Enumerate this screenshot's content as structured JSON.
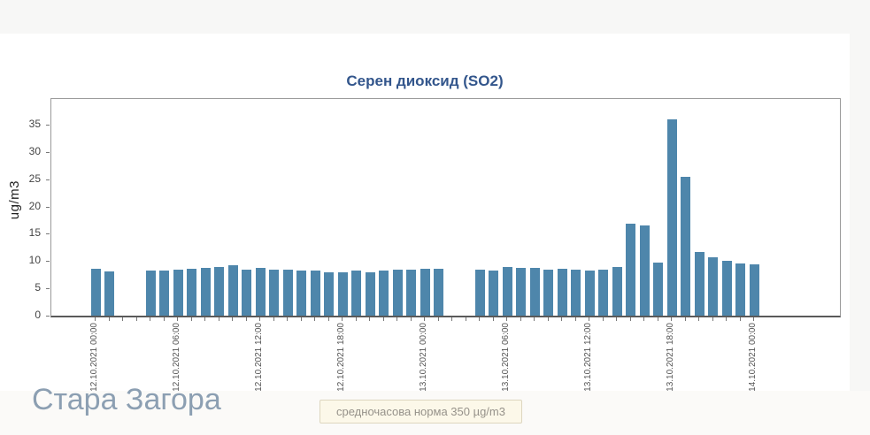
{
  "chart_data": {
    "type": "bar",
    "title": "Серен диоксид (SO2)",
    "ylabel": "ug/m3",
    "ylim": [
      0,
      39.7
    ],
    "yticks": [
      0,
      5,
      10,
      15,
      20,
      25,
      30,
      35
    ],
    "grid": false,
    "legend": "none",
    "bar_color": "#4e86ab",
    "title_color": "#33568c",
    "x_tick_label_every_hours": 6,
    "x_tick_labels": [
      "12.10.2021 00:00",
      "12.10.2021 06:00",
      "12.10.2021 12:00",
      "12.10.2021 18:00",
      "13.10.2021 00:00",
      "13.10.2021 06:00",
      "13.10.2021 12:00",
      "13.10.2021 18:00",
      "14.10.2021 00:00"
    ],
    "categories": [
      "12.10.2021 00:00",
      "12.10.2021 01:00",
      "12.10.2021 02:00",
      "12.10.2021 03:00",
      "12.10.2021 04:00",
      "12.10.2021 05:00",
      "12.10.2021 06:00",
      "12.10.2021 07:00",
      "12.10.2021 08:00",
      "12.10.2021 09:00",
      "12.10.2021 10:00",
      "12.10.2021 11:00",
      "12.10.2021 12:00",
      "12.10.2021 13:00",
      "12.10.2021 14:00",
      "12.10.2021 15:00",
      "12.10.2021 16:00",
      "12.10.2021 17:00",
      "12.10.2021 18:00",
      "12.10.2021 19:00",
      "12.10.2021 20:00",
      "12.10.2021 21:00",
      "12.10.2021 22:00",
      "12.10.2021 23:00",
      "13.10.2021 00:00",
      "13.10.2021 01:00",
      "13.10.2021 02:00",
      "13.10.2021 03:00",
      "13.10.2021 04:00",
      "13.10.2021 05:00",
      "13.10.2021 06:00",
      "13.10.2021 07:00",
      "13.10.2021 08:00",
      "13.10.2021 09:00",
      "13.10.2021 10:00",
      "13.10.2021 11:00",
      "13.10.2021 12:00",
      "13.10.2021 13:00",
      "13.10.2021 14:00",
      "13.10.2021 15:00",
      "13.10.2021 16:00",
      "13.10.2021 17:00",
      "13.10.2021 18:00",
      "13.10.2021 19:00",
      "13.10.2021 20:00",
      "13.10.2021 21:00",
      "13.10.2021 22:00",
      "13.10.2021 23:00",
      "14.10.2021 00:00"
    ],
    "values": [
      8.6,
      8.1,
      null,
      null,
      8.2,
      8.2,
      8.5,
      8.6,
      8.7,
      8.9,
      9.2,
      8.5,
      8.7,
      8.4,
      8.4,
      8.3,
      8.3,
      7.9,
      7.9,
      8.2,
      7.9,
      8.3,
      8.5,
      8.5,
      8.6,
      8.6,
      null,
      null,
      8.5,
      8.3,
      8.9,
      8.7,
      8.7,
      8.4,
      8.6,
      8.5,
      8.3,
      8.4,
      8.9,
      16.8,
      16.5,
      9.8,
      36.0,
      25.4,
      11.7,
      10.7,
      10.0,
      9.6,
      9.4
    ]
  },
  "footer": {
    "station": "Стара Загора",
    "norm_badge": "средночасова норма 350 µg/m3",
    "badge_bg": "#fcf8e9",
    "badge_border": "#ddd6bf"
  }
}
